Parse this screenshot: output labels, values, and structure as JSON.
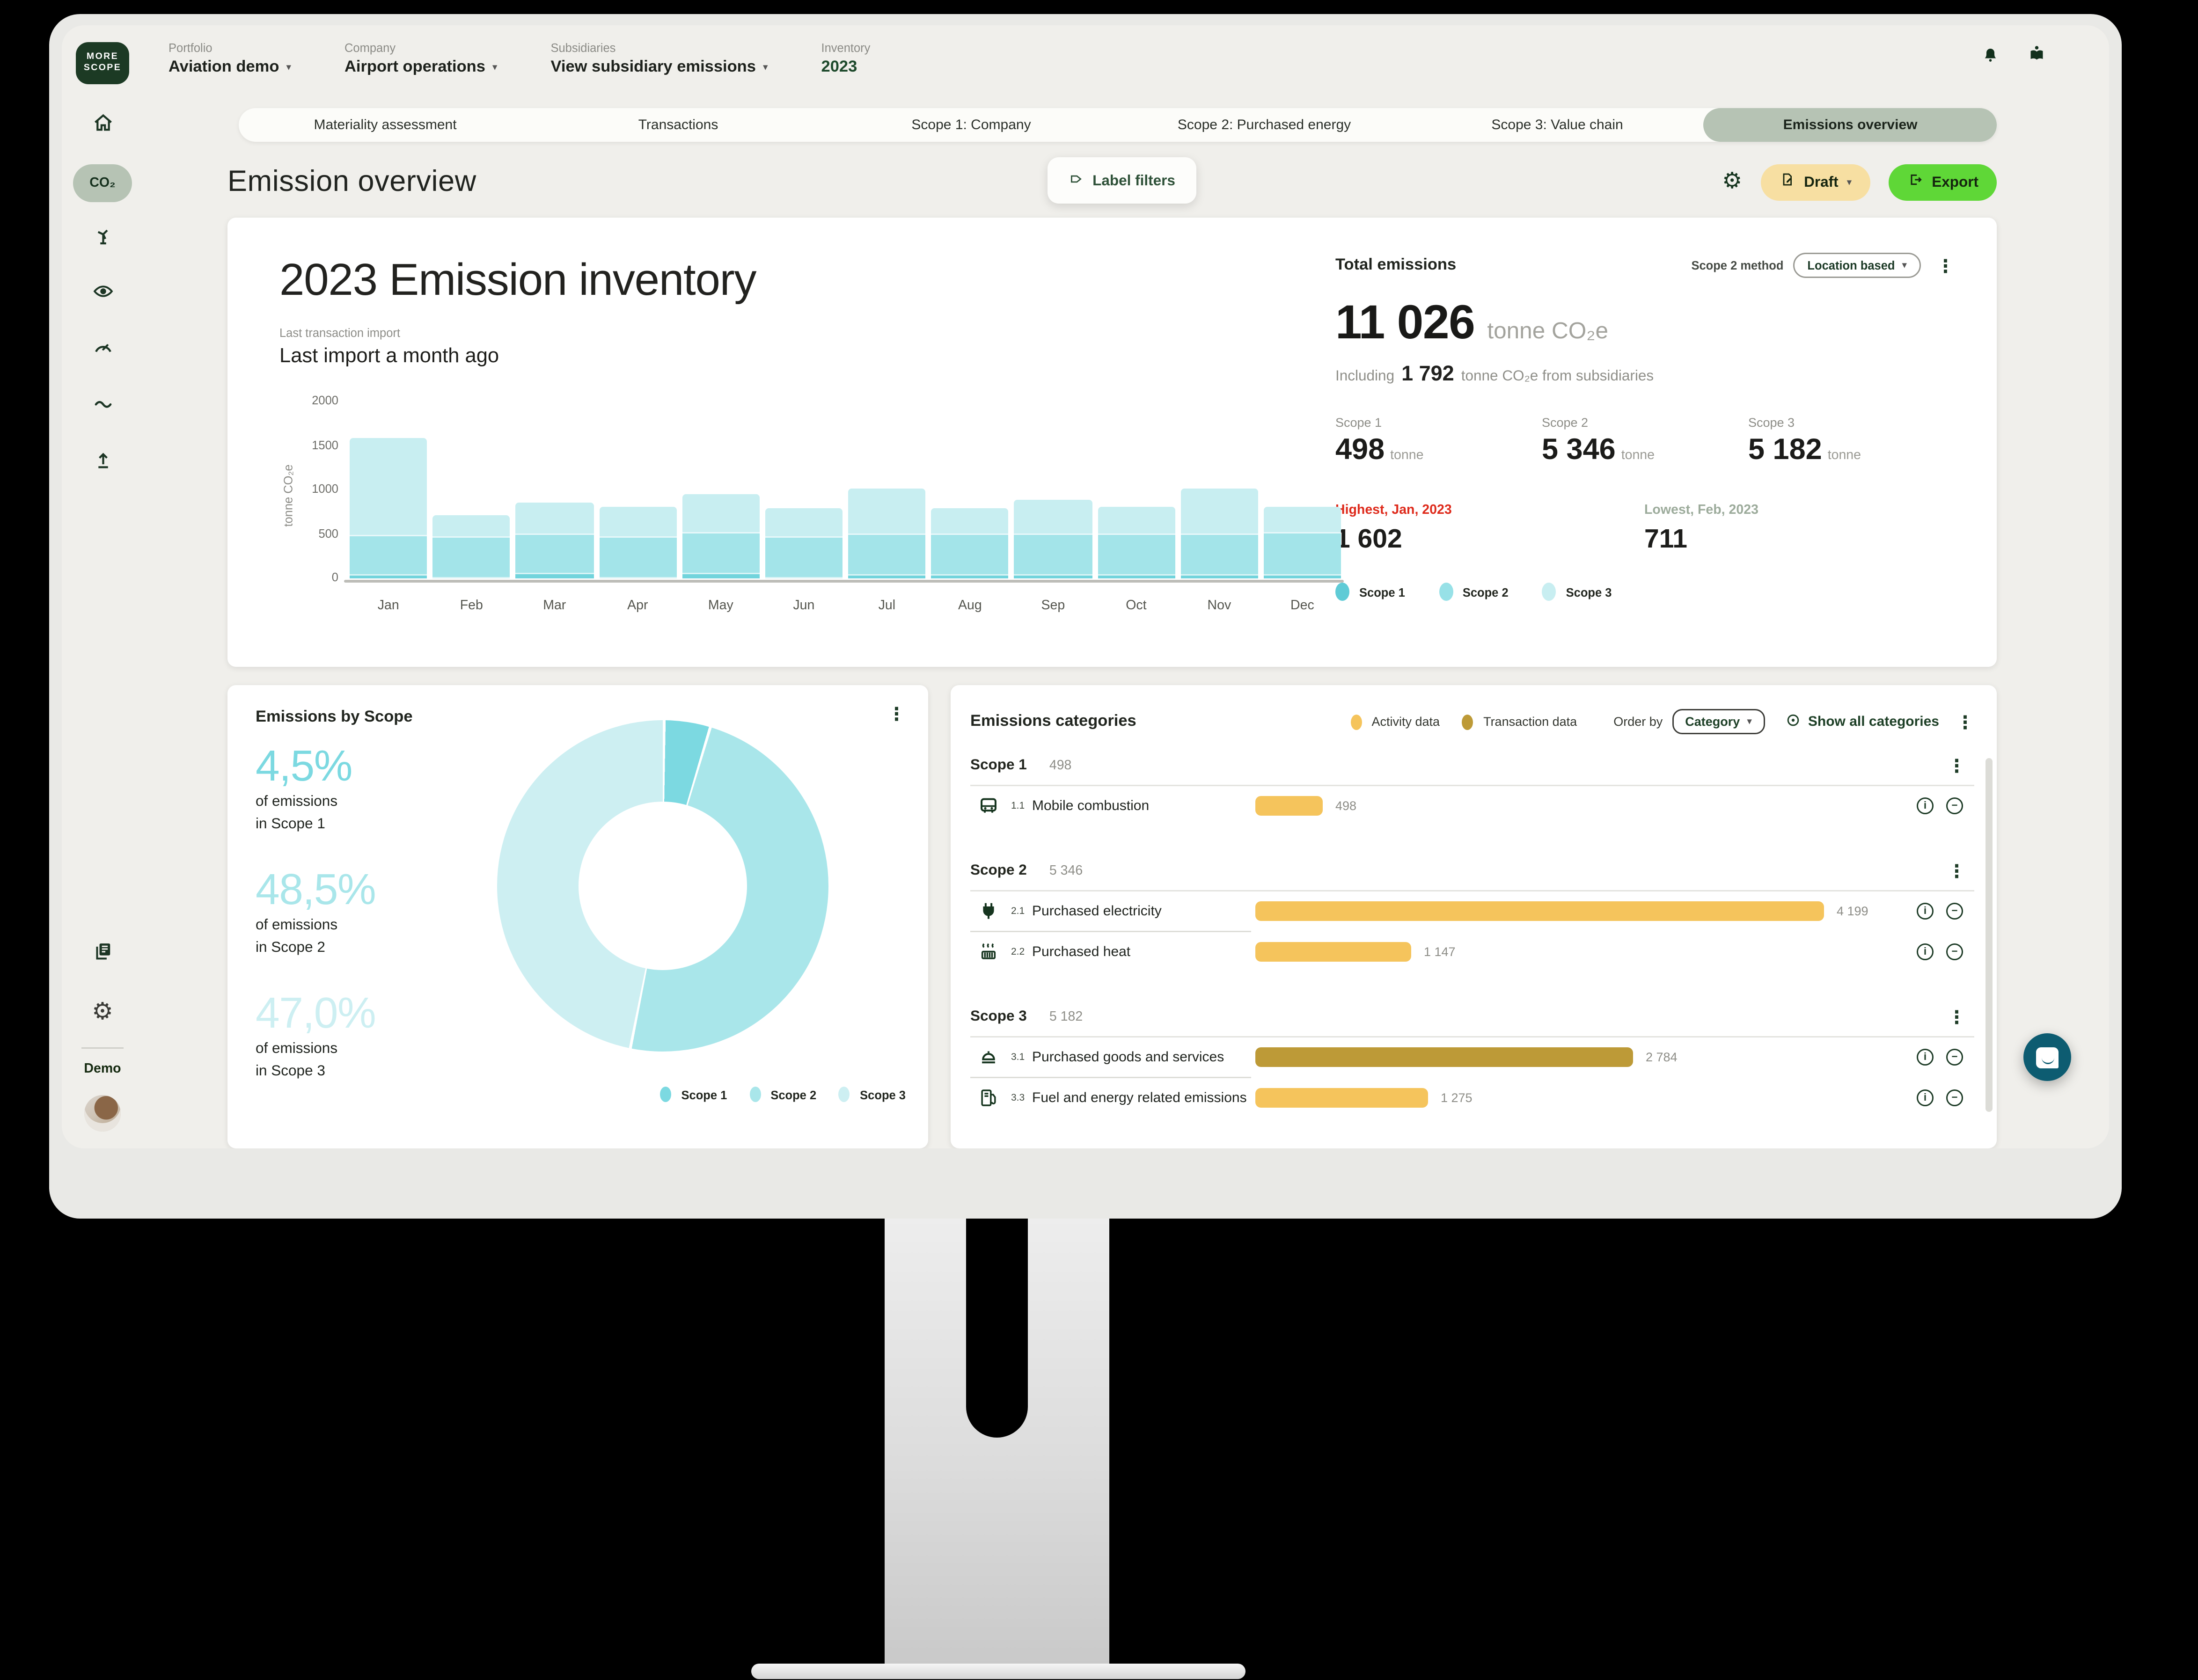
{
  "brand": {
    "logo_top": "MORE",
    "logo_bottom": "SCOPE"
  },
  "topbar": {
    "groups": [
      {
        "label": "Portfolio",
        "value": "Aviation demo",
        "dropdown": true,
        "accent": false
      },
      {
        "label": "Company",
        "value": "Airport operations",
        "dropdown": true,
        "accent": false
      },
      {
        "label": "Subsidiaries",
        "value": "View subsidiary emissions",
        "dropdown": true,
        "accent": false
      },
      {
        "label": "Inventory",
        "value": "2023",
        "dropdown": false,
        "accent": true
      }
    ]
  },
  "tabs": [
    {
      "label": "Materiality assessment",
      "active": false
    },
    {
      "label": "Transactions",
      "active": false
    },
    {
      "label": "Scope 1: Company",
      "active": false
    },
    {
      "label": "Scope 2: Purchased energy",
      "active": false
    },
    {
      "label": "Scope 3: Value chain",
      "active": false
    },
    {
      "label": "Emissions overview",
      "active": true
    }
  ],
  "page": {
    "title": "Emission overview",
    "label_filters": "Label filters",
    "draft": "Draft",
    "export": "Export"
  },
  "inventory_card": {
    "title": "2023 Emission inventory",
    "last_import_label": "Last transaction import",
    "last_import_value": "Last import a month ago"
  },
  "totals": {
    "title": "Total emissions",
    "scope2_method_label": "Scope 2 method",
    "scope2_method_value": "Location based",
    "total_value": "11 026",
    "total_unit": "tonne CO₂e",
    "including_prefix": "Including",
    "including_value": "1 792",
    "including_suffix": "tonne CO₂e from subsidiaries",
    "scopes": [
      {
        "label": "Scope 1",
        "value": "498",
        "unit": "tonne"
      },
      {
        "label": "Scope 2",
        "value": "5 346",
        "unit": "tonne"
      },
      {
        "label": "Scope 3",
        "value": "5 182",
        "unit": "tonne"
      }
    ],
    "highest_label": "Highest, Jan, 2023",
    "highest_value": "1 602",
    "lowest_label": "Lowest, Feb, 2023",
    "lowest_value": "711",
    "legend": [
      "Scope 1",
      "Scope 2",
      "Scope 3"
    ]
  },
  "by_scope": {
    "title": "Emissions by Scope",
    "stats": [
      {
        "pct": "4,5%",
        "line1": "of emissions",
        "line2": "in Scope 1"
      },
      {
        "pct": "48,5%",
        "line1": "of emissions",
        "line2": "in Scope 2"
      },
      {
        "pct": "47,0%",
        "line1": "of emissions",
        "line2": "in Scope 3"
      }
    ],
    "legend": [
      "Scope 1",
      "Scope 2",
      "Scope 3"
    ]
  },
  "categories": {
    "title": "Emissions categories",
    "legend": [
      {
        "label": "Activity data",
        "type": "activity"
      },
      {
        "label": "Transaction data",
        "type": "transaction"
      }
    ],
    "order_by_label": "Order by",
    "order_by_value": "Category",
    "show_all_label": "Show all categories",
    "max_value": 4199,
    "groups": [
      {
        "scope": "Scope 1",
        "total": "498",
        "rows": [
          {
            "code": "1.1",
            "name": "Mobile combustion",
            "value": 498,
            "value_label": "498",
            "icon": "vehicle-icon",
            "data_type": "activity"
          }
        ]
      },
      {
        "scope": "Scope 2",
        "total": "5 346",
        "rows": [
          {
            "code": "2.1",
            "name": "Purchased electricity",
            "value": 4199,
            "value_label": "4 199",
            "icon": "plug-icon",
            "data_type": "activity"
          },
          {
            "code": "2.2",
            "name": "Purchased heat",
            "value": 1147,
            "value_label": "1 147",
            "icon": "heat-icon",
            "data_type": "activity"
          }
        ]
      },
      {
        "scope": "Scope 3",
        "total": "5 182",
        "rows": [
          {
            "code": "3.1",
            "name": "Purchased goods and services",
            "value": 2784,
            "value_label": "2 784",
            "icon": "goods-icon",
            "data_type": "transaction"
          },
          {
            "code": "3.3",
            "name": "Fuel and energy related emissions",
            "value": 1275,
            "value_label": "1 275",
            "icon": "fuel-icon",
            "data_type": "activity"
          }
        ]
      }
    ]
  },
  "sidebar": {
    "badge": "Demo",
    "co2_label": "CO₂"
  },
  "chart_data": [
    {
      "type": "bar",
      "stacked": true,
      "title": "2023 Emission inventory — monthly emissions",
      "categories": [
        "Jan",
        "Feb",
        "Mar",
        "Apr",
        "May",
        "Jun",
        "Jul",
        "Aug",
        "Sep",
        "Oct",
        "Nov",
        "Dec"
      ],
      "series": [
        {
          "name": "Scope 1",
          "color": "#72d4dc",
          "values": [
            55,
            10,
            60,
            15,
            60,
            15,
            50,
            40,
            45,
            45,
            45,
            45
          ]
        },
        {
          "name": "Scope 2",
          "color": "#a3e4e9",
          "values": [
            445,
            455,
            450,
            455,
            455,
            455,
            460,
            465,
            460,
            455,
            460,
            470
          ]
        },
        {
          "name": "Scope 3",
          "color": "#c8eef1",
          "values": [
            1102,
            246,
            345,
            330,
            425,
            320,
            510,
            285,
            375,
            300,
            515,
            280
          ]
        }
      ],
      "totals": [
        1602,
        711,
        855,
        800,
        940,
        790,
        1020,
        790,
        880,
        800,
        1020,
        795
      ],
      "ylabel": "tonne CO₂e",
      "ylim": [
        0,
        2000
      ],
      "yticks": [
        0,
        500,
        1000,
        1500,
        2000
      ],
      "legend_position": "right-panel"
    },
    {
      "type": "pie",
      "donut": true,
      "title": "Emissions by Scope",
      "labels": [
        "Scope 1",
        "Scope 2",
        "Scope 3"
      ],
      "values": [
        4.5,
        48.5,
        47.0
      ],
      "unit": "%",
      "colors": [
        "#7cd9e1",
        "#a9e6ea",
        "#cdeff2"
      ]
    }
  ],
  "colors": {
    "scope1": "#5fcbd6",
    "scope2": "#97e1e7",
    "scope3": "#c8eef1",
    "activity": "#f5c45c",
    "transaction": "#bd9a37",
    "highest_red": "#de2a1b",
    "lowest_sage": "#9cab9b",
    "export_green": "#5fd737",
    "draft_yellow": "#f7dfa2",
    "tab_active": "#b6c3b4",
    "demo_green": "#62d632",
    "dark_green": "#16351f",
    "chat_teal": "#0d5c71"
  }
}
